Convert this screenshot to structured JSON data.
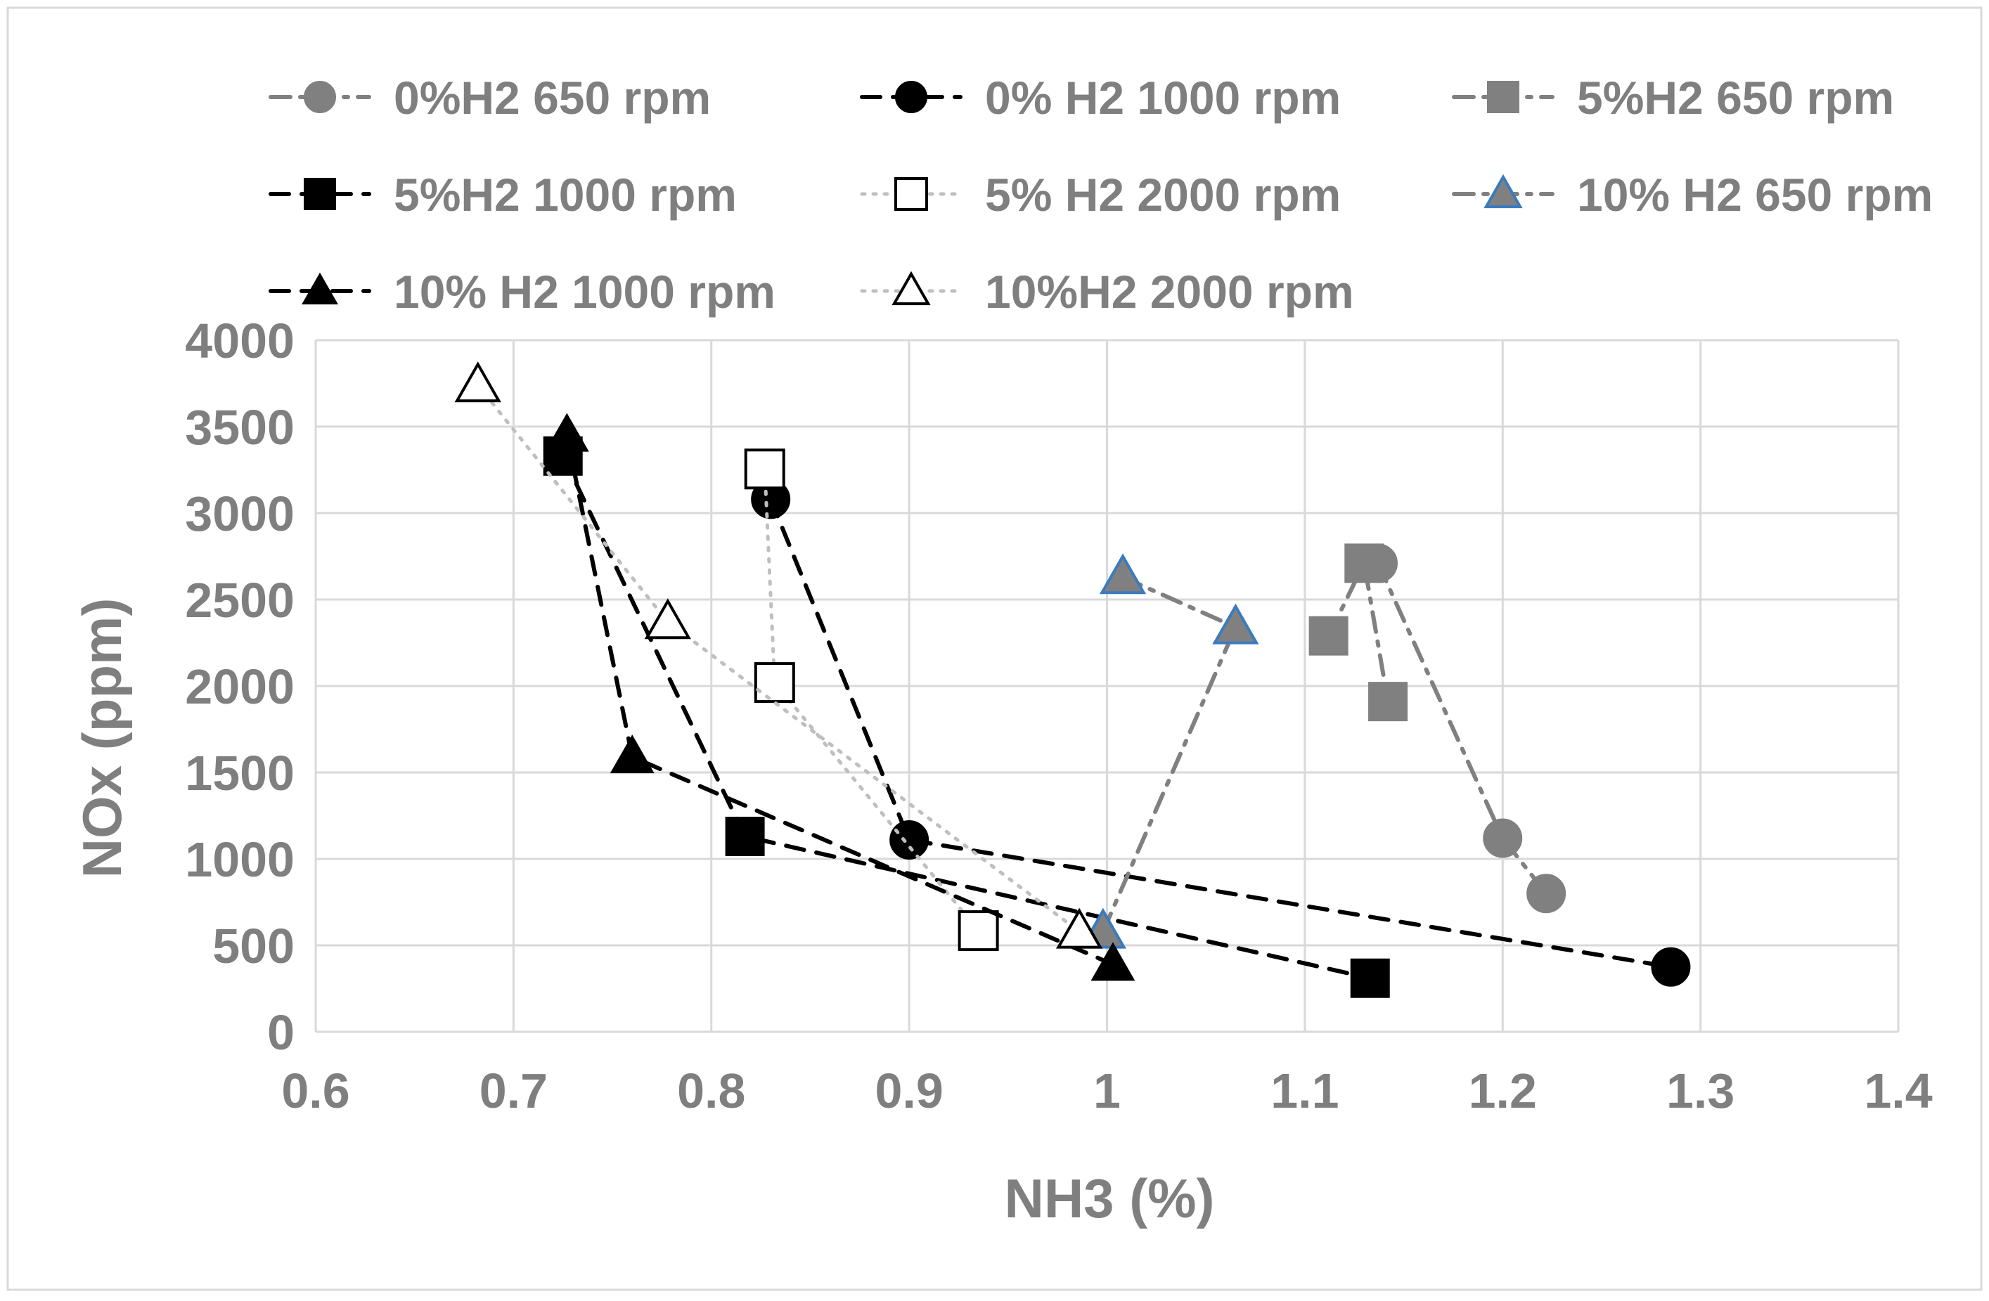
{
  "chart_data": {
    "type": "scatter",
    "title": "",
    "xlabel": "NH3 (%)",
    "ylabel": "NOx (ppm)",
    "xlim": [
      0.6,
      1.4
    ],
    "ylim": [
      0,
      4000
    ],
    "xticks": [
      0.6,
      0.7,
      0.8,
      0.9,
      1,
      1.1,
      1.2,
      1.3,
      1.4
    ],
    "yticks": [
      0,
      500,
      1000,
      1500,
      2000,
      2500,
      3000,
      3500,
      4000
    ],
    "grid": true,
    "legend_position": "top",
    "series": [
      {
        "name": "0%H2 650 rpm",
        "marker": "circle",
        "marker_color": "#808080",
        "marker_fill": true,
        "line_color": "#808080",
        "line_style": "dashdot",
        "x": [
          1.137,
          1.2,
          1.222
        ],
        "y": [
          2710,
          1120,
          800
        ]
      },
      {
        "name": "0% H2 1000 rpm",
        "marker": "circle",
        "marker_color": "#000000",
        "marker_fill": true,
        "line_color": "#000000",
        "line_style": "dash",
        "x": [
          0.83,
          0.9,
          1.285
        ],
        "y": [
          3080,
          1110,
          375
        ]
      },
      {
        "name": "5%H2 650 rpm",
        "marker": "square",
        "marker_color": "#808080",
        "marker_fill": true,
        "line_color": "#808080",
        "line_style": "dashdot",
        "x": [
          1.112,
          1.13,
          1.142
        ],
        "y": [
          2290,
          2710,
          1910
        ]
      },
      {
        "name": "5%H2 1000 rpm",
        "marker": "square",
        "marker_color": "#000000",
        "marker_fill": true,
        "line_color": "#000000",
        "line_style": "dash",
        "x": [
          0.725,
          0.817,
          1.133
        ],
        "y": [
          3330,
          1130,
          310
        ]
      },
      {
        "name": "5% H2 2000 rpm",
        "marker": "square",
        "marker_color": "#000000",
        "marker_fill": false,
        "line_color": "#bfbfbf",
        "line_style": "dot",
        "x": [
          0.827,
          0.832,
          0.935
        ],
        "y": [
          3255,
          2020,
          585
        ]
      },
      {
        "name": "10% H2 650 rpm",
        "marker": "triangle",
        "marker_color": "#808080",
        "marker_fill": true,
        "marker_edge": "#3a7bbf",
        "line_color": "#808080",
        "line_style": "dashdot",
        "x": [
          1.008,
          1.065,
          0.998
        ],
        "y": [
          2630,
          2340,
          580
        ]
      },
      {
        "name": "10% H2 1000 rpm",
        "marker": "triangle",
        "marker_color": "#000000",
        "marker_fill": true,
        "line_color": "#000000",
        "line_style": "dash",
        "x": [
          0.727,
          0.76,
          1.003
        ],
        "y": [
          3450,
          1590,
          390
        ]
      },
      {
        "name": "10%H2 2000 rpm",
        "marker": "triangle",
        "marker_color": "#000000",
        "marker_fill": false,
        "line_color": "#bfbfbf",
        "line_style": "dot",
        "x": [
          0.682,
          0.778,
          0.986
        ],
        "y": [
          3740,
          2370,
          580
        ]
      }
    ]
  }
}
